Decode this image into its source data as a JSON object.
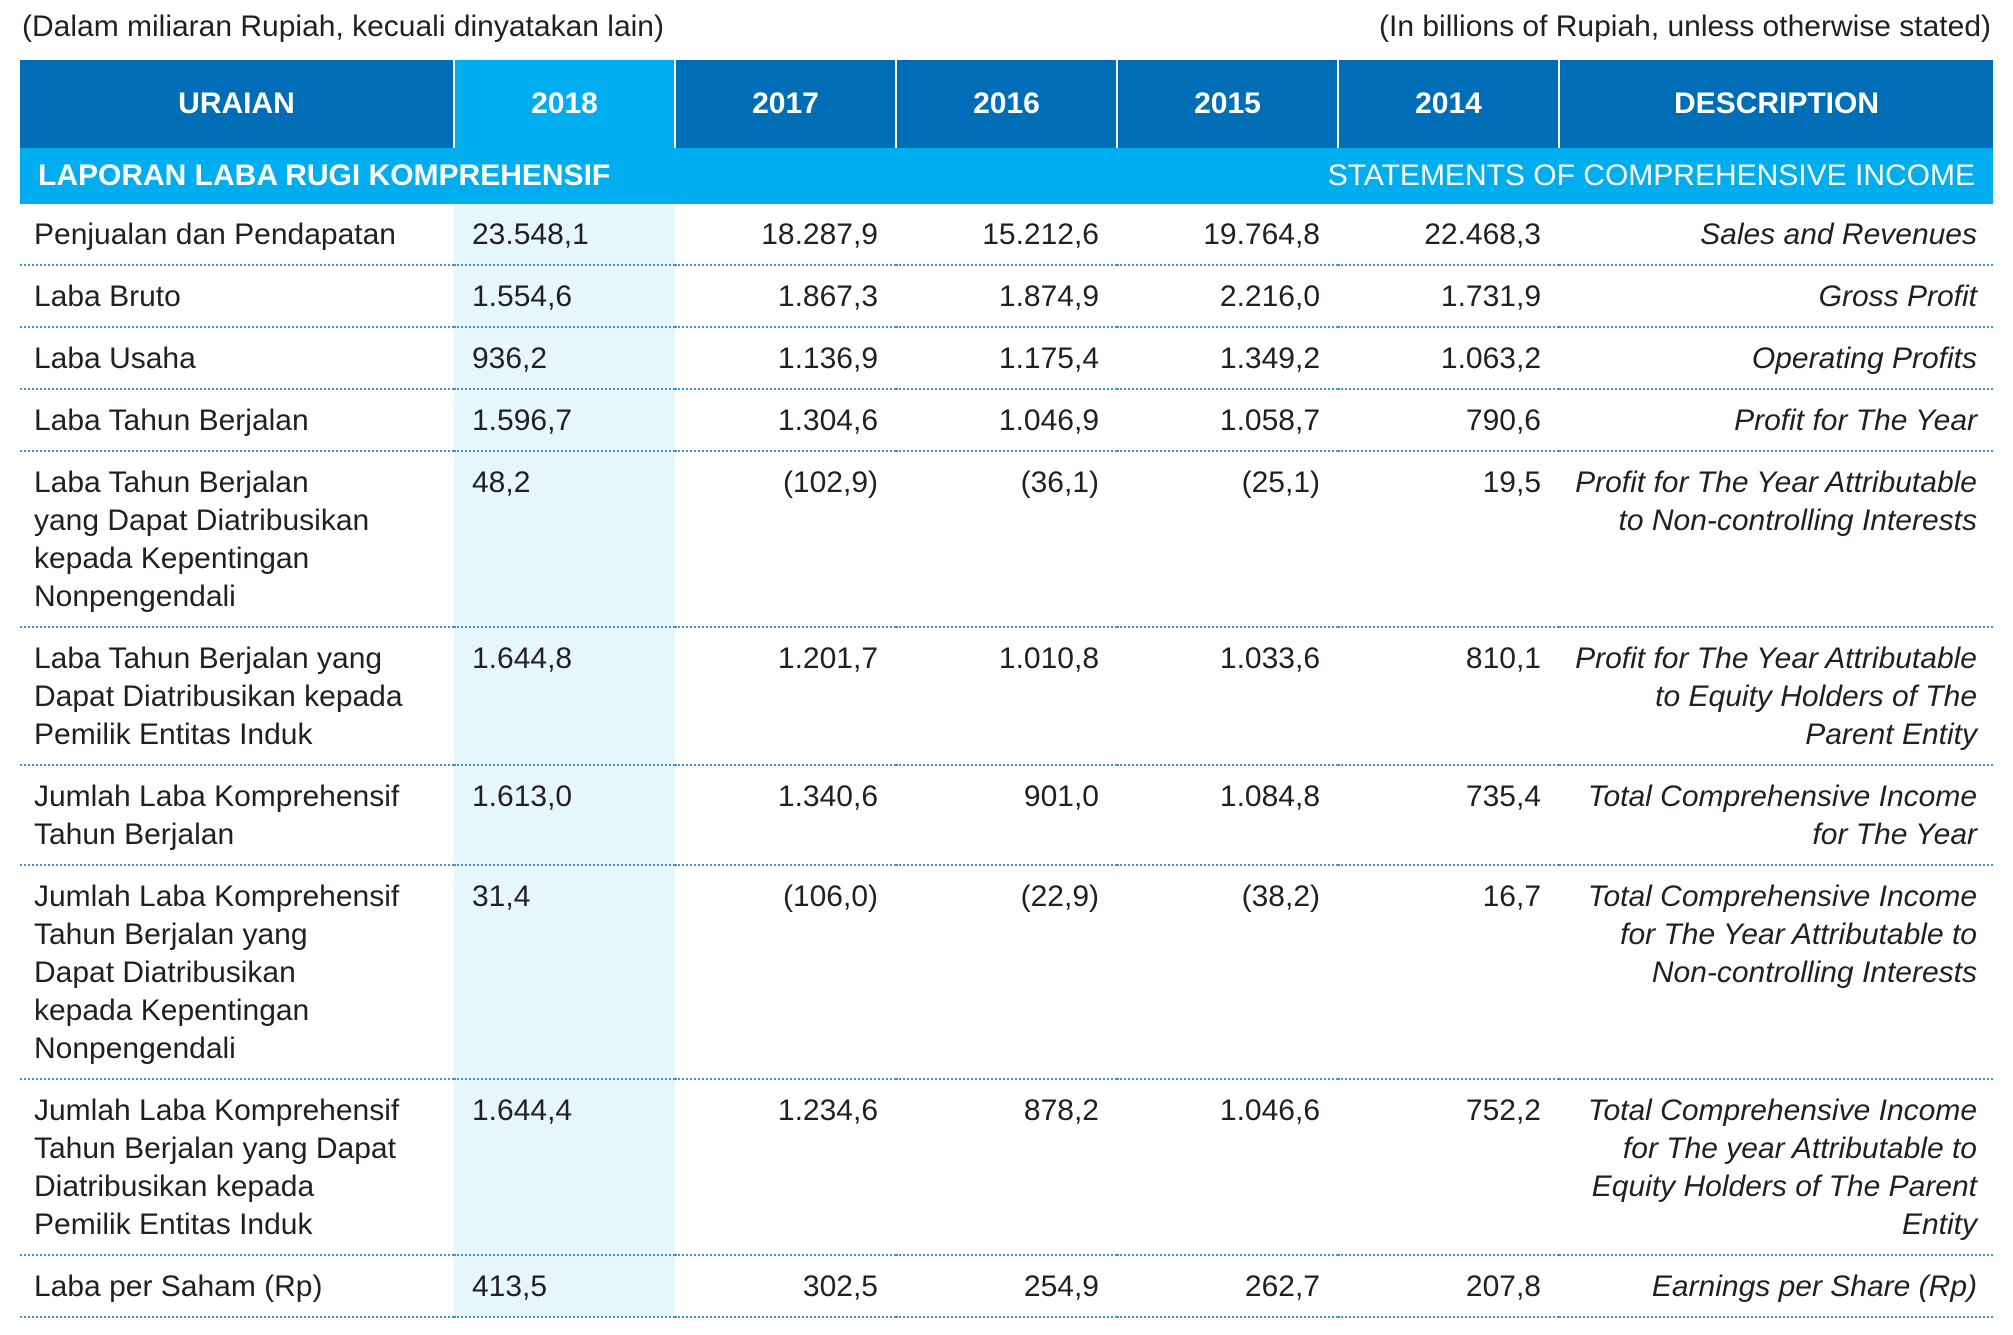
{
  "units_id": "(Dalam miliaran Rupiah, kecuali dinyatakan lain)",
  "units_en": "(In billions of Rupiah, unless otherwise stated)",
  "headers": [
    "URAIAN",
    "2018",
    "2017",
    "2016",
    "2015",
    "2014",
    "DESCRIPTION"
  ],
  "section": {
    "title_id": "LAPORAN LABA RUGI KOMPREHENSIF",
    "title_en": "STATEMENTS OF COMPREHENSIVE INCOME"
  },
  "rows": [
    {
      "label": [
        "Penjualan dan Pendapatan"
      ],
      "v2018": "23.548,1",
      "v2017": "18.287,9",
      "v2016": "15.212,6",
      "v2015": "19.764,8",
      "v2014": "22.468,3",
      "desc": [
        "Sales and Revenues"
      ]
    },
    {
      "label": [
        "Laba Bruto"
      ],
      "v2018": "1.554,6",
      "v2017": "1.867,3",
      "v2016": "1.874,9",
      "v2015": "2.216,0",
      "v2014": "1.731,9",
      "desc": [
        "Gross Profit"
      ]
    },
    {
      "label": [
        "Laba Usaha"
      ],
      "v2018": "936,2",
      "v2017": "1.136,9",
      "v2016": "1.175,4",
      "v2015": "1.349,2",
      "v2014": "1.063,2",
      "desc": [
        "Operating Profits"
      ]
    },
    {
      "label": [
        "Laba Tahun Berjalan"
      ],
      "v2018": "1.596,7",
      "v2017": "1.304,6",
      "v2016": "1.046,9",
      "v2015": "1.058,7",
      "v2014": "790,6",
      "desc": [
        "Profit for The Year"
      ]
    },
    {
      "label": [
        "Laba Tahun Berjalan",
        "yang Dapat Diatribusikan",
        "kepada Kepentingan",
        "Nonpengendali"
      ],
      "v2018": "48,2",
      "v2017": "(102,9)",
      "v2016": "(36,1)",
      "v2015": "(25,1)",
      "v2014": "19,5",
      "desc": [
        "Profit for The Year Attributable",
        "to Non-controlling Interests"
      ]
    },
    {
      "label": [
        "Laba Tahun Berjalan yang",
        "Dapat Diatribusikan kepada",
        "Pemilik Entitas Induk"
      ],
      "v2018": "1.644,8",
      "v2017": "1.201,7",
      "v2016": "1.010,8",
      "v2015": "1.033,6",
      "v2014": "810,1",
      "desc": [
        "Profit for The Year Attributable",
        "to Equity Holders of The",
        "Parent Entity"
      ]
    },
    {
      "label": [
        "Jumlah Laba Komprehensif",
        "Tahun Berjalan"
      ],
      "v2018": "1.613,0",
      "v2017": "1.340,6",
      "v2016": "901,0",
      "v2015": "1.084,8",
      "v2014": "735,4",
      "desc": [
        "Total Comprehensive Income",
        "for The Year"
      ]
    },
    {
      "label": [
        "Jumlah Laba Komprehensif",
        "Tahun Berjalan yang",
        "Dapat Diatribusikan",
        "kepada Kepentingan",
        "Nonpengendali"
      ],
      "v2018": "31,4",
      "v2017": "(106,0)",
      "v2016": "(22,9)",
      "v2015": "(38,2)",
      "v2014": "16,7",
      "desc": [
        "Total Comprehensive Income",
        "for The Year Attributable to",
        "Non-controlling Interests"
      ]
    },
    {
      "label": [
        "Jumlah Laba Komprehensif",
        "Tahun Berjalan yang Dapat",
        "Diatribusikan kepada",
        "Pemilik Entitas Induk"
      ],
      "v2018": "1.644,4",
      "v2017": "1.234,6",
      "v2016": "878,2",
      "v2015": "1.046,6",
      "v2014": "752,2",
      "desc": [
        "Total Comprehensive Income",
        "for The year Attributable to",
        "Equity Holders of The Parent",
        "Entity"
      ]
    },
    {
      "label": [
        "Laba per Saham (Rp)"
      ],
      "v2018": "413,5",
      "v2017": "302,5",
      "v2016": "254,9",
      "v2015": "262,7",
      "v2014": "207,8",
      "desc": [
        "Earnings per Share (Rp)"
      ]
    }
  ]
}
